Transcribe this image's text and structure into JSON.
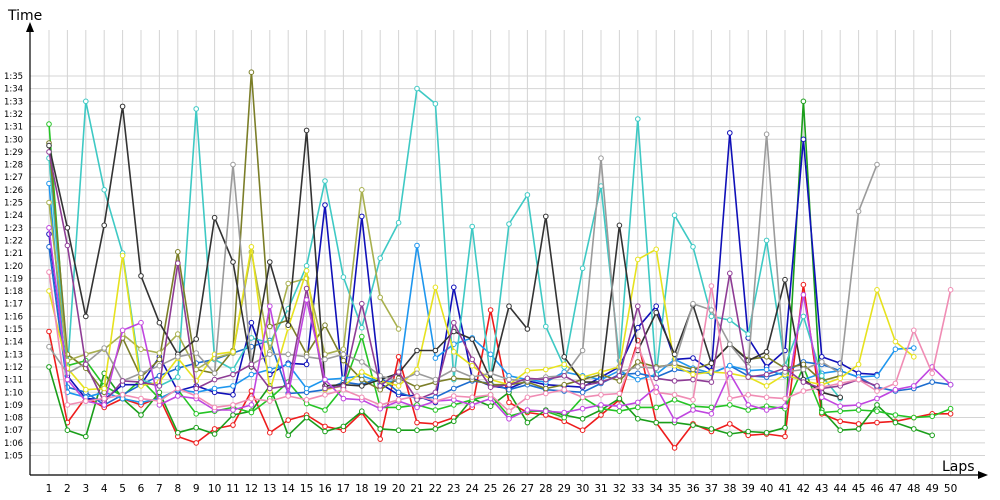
{
  "chart_data": {
    "type": "line",
    "xlabel": "Laps",
    "ylabel": "Time",
    "x_min": 1,
    "x_max": 50,
    "y_min_seconds": 300,
    "y_max_seconds": 1140,
    "y_ticks": [
      "1:05",
      "1:06",
      "1:07",
      "1:08",
      "1:09",
      "1:10",
      "1:11",
      "1:12",
      "1:13",
      "1:14",
      "1:15",
      "1:16",
      "1:17",
      "1:18",
      "1:19",
      "1:20",
      "1:21",
      "1:22",
      "1:23",
      "1:24",
      "1:25",
      "1:26",
      "1:27",
      "1:28",
      "1:29",
      "1:30",
      "1:31",
      "1:32",
      "1:33",
      "1:34",
      "1:35"
    ],
    "x_ticks": [
      "1",
      "2",
      "3",
      "4",
      "5",
      "6",
      "7",
      "8",
      "9",
      "10",
      "11",
      "12",
      "13",
      "14",
      "15",
      "16",
      "17",
      "18",
      "19",
      "20",
      "21",
      "22",
      "23",
      "24",
      "25",
      "26",
      "27",
      "28",
      "29",
      "30",
      "31",
      "32",
      "33",
      "34",
      "35",
      "36",
      "37",
      "38",
      "39",
      "40",
      "41",
      "42",
      "43",
      "44",
      "45",
      "46",
      "47",
      "48",
      "49",
      "50"
    ],
    "grid": true,
    "series": [
      {
        "color": "#ee1c1c",
        "values": [
          "1:14.8",
          "1:07.6",
          "1:09.6",
          "1:08.8",
          "1:09.5",
          "1:09.0",
          "1:09.6",
          "1:06.5",
          "1:06.0",
          "1:07.1",
          "1:07.4",
          "1:10.1",
          "1:06.8",
          "1:07.8",
          "1:08.2",
          "1:07.3",
          "1:07.0",
          "1:08.4",
          "1:06.3",
          "1:12.8",
          "1:07.6",
          "1:07.5",
          "1:08.0",
          "1:08.8",
          "1:16.5",
          "1:09.2",
          "1:08.4",
          "1:08.2",
          "1:07.7",
          "1:07.0",
          "1:08.2",
          "1:09.4",
          "1:14.1",
          "1:07.6",
          "1:05.6",
          "1:07.5",
          "1:06.9",
          "1:07.5",
          "1:06.6",
          "1:06.7",
          "1:06.5",
          "1:18.5",
          "1:08.3",
          "1:07.7",
          "1:07.5",
          "1:07.6",
          "1:07.7",
          "1:08.0",
          "1:08.3",
          "1:08.3"
        ]
      },
      {
        "color": "#1a9e1a",
        "values": [
          "1:12.0",
          "1:07.0",
          "1:06.5",
          "1:11.5",
          "1:09.5",
          "1:08.2",
          "1:10.0",
          "1:06.8",
          "1:07.2",
          "1:06.7",
          "1:08.2",
          "1:08.5",
          "1:10.5",
          "1:06.6",
          "1:08.0",
          "1:06.9",
          "1:07.3",
          "1:08.5",
          "1:07.1",
          "1:07.0",
          "1:07.0",
          "1:07.1",
          "1:07.7",
          "1:09.5",
          "1:08.9",
          "1:10.0",
          "1:07.6",
          "1:08.6",
          "1:08.2",
          "1:07.9",
          "1:08.6",
          "1:09.5",
          "1:07.9",
          "1:07.6",
          "1:07.6",
          "1:07.4",
          "1:07.1",
          "1:06.7",
          "1:06.9",
          "1:06.8",
          "1:07.2",
          "1:33.0",
          "1:08.6",
          "1:07.0",
          "1:07.1",
          "1:09.0",
          "1:07.6",
          "1:07.1",
          "1:06.6",
          null
        ]
      },
      {
        "color": "#25c425",
        "values": [
          "1:31.2",
          "1:12.1",
          "1:12.5",
          "1:10.5",
          "1:09.7",
          "1:11.0",
          "1:09.5",
          "1:10.2",
          "1:08.3",
          "1:08.5",
          "1:08.8",
          "1:08.4",
          "1:09.5",
          "1:10.8",
          "1:09.1",
          "1:08.6",
          "1:10.4",
          "1:14.4",
          "1:08.8",
          "1:08.8",
          "1:09.0",
          "1:08.6",
          "1:09.0",
          "1:09.4",
          "1:09.8",
          "1:08.1",
          "1:08.5",
          "1:08.5",
          "1:08.0",
          "1:09.6",
          "1:08.7",
          "1:08.5",
          "1:08.8",
          "1:08.8",
          "1:09.4",
          "1:08.9",
          "1:08.8",
          "1:09.0",
          "1:08.6",
          "1:08.9",
          "1:08.7",
          "1:12.0",
          "1:08.4",
          "1:08.5",
          "1:08.6",
          "1:08.5",
          "1:08.2",
          "1:08.0",
          "1:08.1",
          "1:08.7"
        ]
      },
      {
        "color": "#1010b8",
        "values": [
          "1:22.5",
          "1:11.3",
          "1:09.5",
          "1:09.4",
          "1:10.6",
          "1:10.6",
          "1:12.8",
          "1:10.1",
          "1:10.5",
          "1:10.0",
          "1:09.8",
          "1:15.5",
          "1:11.4",
          "1:12.3",
          "1:12.2",
          "1:24.8",
          "1:10.3",
          "1:23.9",
          "1:10.7",
          "1:09.8",
          "1:09.7",
          "1:09.2",
          "1:18.3",
          "1:11.1",
          "1:10.5",
          "1:10.3",
          "1:10.9",
          "1:10.6",
          "1:10.5",
          "1:10.4",
          "1:11.2",
          "1:12.0",
          "1:15.1",
          "1:16.8",
          "1:12.6",
          "1:12.7",
          "1:11.7",
          "1:30.5",
          "1:14.3",
          "1:12.0",
          "1:13.3",
          "1:30.0",
          "1:12.8",
          "1:12.3",
          "1:11.5",
          "1:11.4",
          "null",
          "null",
          "null",
          "null"
        ]
      },
      {
        "color": "#1c6ccf",
        "values": [
          "1:21.5",
          "1:10.4",
          "1:10.0",
          "1:09.0",
          "1:09.8",
          "1:10.6",
          "1:11.3",
          "1:11.9",
          "1:12.3",
          "1:12.6",
          "1:13.1",
          "1:13.6",
          "1:14.1",
          "1:09.9",
          "1:10.0",
          "1:10.2",
          "1:10.8",
          "1:10.6",
          "1:11.2",
          "1:10.0",
          "1:09.5",
          "1:09.6",
          "1:10.3",
          "1:10.9",
          "1:10.7",
          "1:10.2",
          "1:10.6",
          "1:10.2",
          "1:10.1",
          "1:10.0",
          "1:10.7",
          "1:11.4",
          "1:11.5",
          "1:11.2",
          "1:11.8",
          "1:11.6",
          "1:11.5",
          "1:12.1",
          "1:11.3",
          "1:11.2",
          "1:11.6",
          "1:12.4",
          "1:12.2",
          "1:11.7",
          "1:11.2",
          "1:10.4",
          "1:10.1",
          "1:10.3",
          "1:10.8",
          "1:10.6"
        ]
      },
      {
        "color": "#1e96ee",
        "values": [
          "1:26.5",
          "1:10.0",
          "1:09.6",
          "1:10.0",
          "1:09.5",
          "1:09.2",
          "1:09.5",
          "1:10.2",
          "1:10.0",
          "1:10.3",
          "1:10.5",
          "1:11.4",
          "1:11.8",
          "1:12.2",
          "1:10.3",
          "1:11.0",
          "1:11.1",
          "1:11.3",
          "1:10.8",
          "1:10.9",
          "1:21.6",
          "1:12.7",
          "1:13.8",
          "1:14.3",
          "1:13.0",
          "1:11.3",
          "1:11.0",
          "1:10.8",
          "1:11.6",
          "1:11.3",
          "1:11.0",
          "1:11.7",
          "1:11.0",
          "1:11.4",
          "1:12.6",
          "1:11.9",
          "1:11.5",
          "1:12.1",
          "1:11.7",
          "1:11.8",
          "1:11.3",
          "1:11.0",
          "1:11.5",
          "1:11.7",
          "1:11.2",
          "1:11.3",
          "1:13.4",
          "1:13.5",
          null,
          null
        ]
      },
      {
        "color": "#3ec9c4",
        "values": [
          "1:28.5",
          "1:11.7",
          "1:33.0",
          "1:26.0",
          "1:21.0",
          "1:11.0",
          "1:10.5",
          "1:11.2",
          "1:32.4",
          "1:12.6",
          "1:11.8",
          "1:14.3",
          "1:13.9",
          "1:16.6",
          "1:20.0",
          "1:26.7",
          "1:19.1",
          "1:15.1",
          "1:20.6",
          "1:23.4",
          "1:34.0",
          "1:32.8",
          "1:11.0",
          "1:23.1",
          "1:11.0",
          "1:23.3",
          "1:25.6",
          "1:15.2",
          "1:12.0",
          "1:19.8",
          "1:26.3",
          "1:12.5",
          "1:31.6",
          "1:11.4",
          "1:24.0",
          "1:21.5",
          "1:16.0",
          "1:15.7",
          "1:14.6",
          "1:22.0",
          "1:12.1",
          "1:16.0",
          "1:11.3",
          "1:09.5",
          null,
          null,
          null,
          null,
          null,
          null
        ]
      },
      {
        "color": "#7b7e28",
        "values": [
          "1:29.7",
          "1:13.0",
          "1:11.9",
          "1:10.0",
          "1:14.3",
          "1:11.2",
          "1:12.6",
          "1:21.1",
          "1:11.8",
          "1:11.5",
          "1:13.3",
          "1:35.3",
          "1:15.2",
          "1:15.7",
          "1:13.0",
          "1:15.3",
          "1:12.5",
          "1:11.0",
          "1:10.2",
          "1:11.1",
          "1:10.4",
          "1:10.8",
          "1:11.1",
          "1:11.0",
          "1:10.6",
          "1:10.6",
          "1:10.8",
          "1:10.3",
          "1:10.6",
          "1:11.0",
          "1:11.4",
          "1:10.9",
          "1:12.4",
          "1:12.0",
          "1:12.2",
          "1:11.8",
          "1:12.3",
          "1:13.8",
          "1:12.6",
          "1:12.8",
          "1:11.9",
          "1:12.2",
          "1:10.9",
          "1:11.3",
          null,
          null,
          null,
          null,
          null,
          null
        ]
      },
      {
        "color": "#a8b04e",
        "values": [
          "1:25.0",
          "1:12.5",
          "1:13.0",
          "1:13.4",
          "1:14.6",
          "1:13.4",
          "1:13.1",
          "1:14.6",
          "1:11.8",
          "1:12.7",
          "1:13.1",
          "1:21.1",
          "1:13.2",
          "1:18.6",
          "1:19.0",
          "1:13.0",
          "1:13.4",
          "1:26.0",
          "1:17.5",
          "1:15.0",
          null,
          null,
          null,
          null,
          null,
          null,
          null,
          null,
          null,
          null,
          null,
          null,
          null,
          null,
          null,
          null,
          null,
          null,
          null,
          null,
          null,
          null,
          null,
          null,
          null,
          null,
          null,
          null,
          null,
          null
        ]
      },
      {
        "color": "#e6e21e",
        "values": [
          "1:18.0",
          "1:11.9",
          "1:10.2",
          "1:10.3",
          "1:20.8",
          "1:10.5",
          "1:10.8",
          "1:12.7",
          "1:10.9",
          "1:13.0",
          "1:13.2",
          "1:21.5",
          "1:10.1",
          "1:15.1",
          "1:19.6",
          "1:10.2",
          "1:10.5",
          "1:11.6",
          "1:10.9",
          "1:10.5",
          "1:11.8",
          "1:18.3",
          "1:13.2",
          "1:12.1",
          "1:11.0",
          "1:10.6",
          "1:11.7",
          "1:11.8",
          "1:12.2",
          "1:11.2",
          "1:11.6",
          "1:12.0",
          "1:20.5",
          "1:21.3",
          "1:12.1",
          "1:11.4",
          "1:11.6",
          "1:11.5",
          "1:11.2",
          "1:10.5",
          "1:11.4",
          "1:10.9",
          "1:10.6",
          "1:11.1",
          "1:12.2",
          "1:18.1",
          "1:14.0",
          "1:12.8",
          null,
          null
        ]
      },
      {
        "color": "#333333",
        "values": [
          "1:29.5",
          "1:23.0",
          "1:16.0",
          "1:23.2",
          "1:32.6",
          "1:19.2",
          "1:15.5",
          "1:13.0",
          "1:14.2",
          "1:23.8",
          "1:20.3",
          "1:12.0",
          "1:20.3",
          "1:15.3",
          "1:30.7",
          "1:10.5",
          "1:10.6",
          "1:10.5",
          "1:11.0",
          "1:11.5",
          "1:13.3",
          "1:13.3",
          "1:14.8",
          "1:14.2",
          "1:11.0",
          "1:16.8",
          "1:15.0",
          "1:23.9",
          "1:12.8",
          "1:10.8",
          "1:10.8",
          "1:23.2",
          "1:13.3",
          "1:16.3",
          "1:13.0",
          "1:16.9",
          "1:12.3",
          "1:13.8",
          "1:12.5",
          "1:13.2",
          "1:18.9",
          "1:11.0",
          "1:10.0",
          "1:09.6",
          null,
          null,
          null,
          null,
          null,
          null
        ]
      },
      {
        "color": "#9b9b9b",
        "values": [
          "1:13.6",
          "1:11.5",
          "1:12.3",
          "1:13.5",
          "1:10.9",
          "1:11.5",
          "1:12.1",
          "1:12.8",
          "1:13.1",
          "1:11.5",
          "1:28.0",
          "1:12.2",
          "1:13.0",
          "1:13.0",
          "1:12.8",
          "1:12.6",
          "1:13.0",
          "1:12.4",
          "1:11.3",
          "1:10.9",
          "1:11.5",
          "1:11.0",
          "1:11.8",
          "1:11.2",
          "1:11.5",
          "1:11.0",
          "1:10.9",
          "1:11.2",
          "1:11.3",
          "1:13.3",
          "1:28.5",
          "1:11.6",
          "1:12.0",
          "1:11.9",
          "1:12.3",
          "1:17.0",
          "1:16.5",
          "1:13.8",
          "1:12.0",
          "1:30.4",
          "1:11.6",
          "1:11.8",
          "1:12.4",
          "1:11.5",
          "1:24.3",
          "1:28.0",
          null,
          null,
          null,
          null
        ]
      },
      {
        "color": "#8e3c95",
        "values": [
          "1:29.0",
          "1:21.6",
          "1:12.2",
          "1:09.2",
          "1:10.9",
          "1:10.8",
          "1:10.5",
          "1:20.2",
          "1:10.3",
          "1:11.0",
          "1:11.4",
          "1:12.2",
          "1:10.3",
          "1:10.5",
          "1:18.2",
          "1:10.3",
          "1:10.5",
          "1:17.0",
          "1:10.5",
          "1:11.6",
          "1:09.4",
          "1:10.0",
          "1:15.5",
          "1:12.6",
          "1:10.4",
          "1:10.6",
          "1:11.1",
          "1:11.0",
          "1:11.3",
          "1:10.5",
          "1:10.8",
          "1:11.3",
          "1:16.8",
          "1:11.1",
          "1:10.9",
          "1:11.0",
          "1:10.8",
          "1:19.4",
          "1:11.2",
          "1:11.4",
          "1:11.9",
          "1:10.8",
          "1:10.3",
          "1:10.5",
          "1:11.0",
          "1:10.5",
          null,
          null,
          null,
          null
        ]
      },
      {
        "color": "#c046e0",
        "values": [
          "1:23.0",
          "1:11.0",
          "1:09.3",
          "1:09.0",
          "1:14.9",
          "1:15.5",
          "1:09.0",
          "1:09.7",
          "1:09.5",
          "1:08.6",
          "1:08.6",
          "1:09.0",
          "1:16.8",
          "1:09.8",
          "1:17.3",
          "1:11.0",
          "1:09.5",
          "1:09.4",
          "1:08.7",
          "1:09.3",
          "1:08.8",
          "1:09.3",
          "1:09.4",
          "1:09.0",
          "1:09.5",
          "1:07.9",
          "1:08.6",
          "1:08.5",
          "1:08.4",
          "1:08.7",
          "1:09.0",
          "1:08.9",
          "1:09.2",
          "1:10.4",
          "1:07.8",
          "1:08.6",
          "1:08.3",
          "1:11.5",
          "1:09.0",
          "1:08.6",
          "1:08.9",
          "1:17.7",
          "1:09.6",
          "1:08.9",
          "1:09.0",
          "1:09.5",
          "1:10.2",
          "1:10.5",
          "1:12.0",
          "1:10.6"
        ]
      },
      {
        "color": "#f08cb4",
        "values": [
          "1:19.5",
          "1:09.0",
          "1:09.3",
          "1:09.5",
          "1:09.8",
          "1:09.5",
          "1:09.3",
          "1:10.3",
          "1:09.7",
          "1:08.8",
          "1:09.0",
          "1:09.5",
          "1:09.3",
          "1:09.7",
          "1:09.4",
          "1:09.8",
          "1:10.2",
          "1:09.6",
          "1:09.0",
          "1:09.4",
          "1:09.7",
          "1:09.3",
          "1:09.7",
          "1:09.6",
          "1:09.8",
          "1:08.5",
          "1:09.6",
          "1:09.9",
          "1:10.2",
          "1:09.6",
          "1:09.8",
          "1:09.9",
          "1:13.7",
          "1:10.0",
          "1:09.8",
          "1:09.4",
          "1:18.4",
          "1:09.5",
          "1:09.8",
          "1:09.6",
          "1:09.5",
          "1:10.1",
          "1:10.4",
          "1:10.7",
          "1:11.0",
          "1:10.1",
          "1:10.7",
          "1:14.9",
          "1:11.5",
          "1:18.1"
        ]
      }
    ]
  }
}
